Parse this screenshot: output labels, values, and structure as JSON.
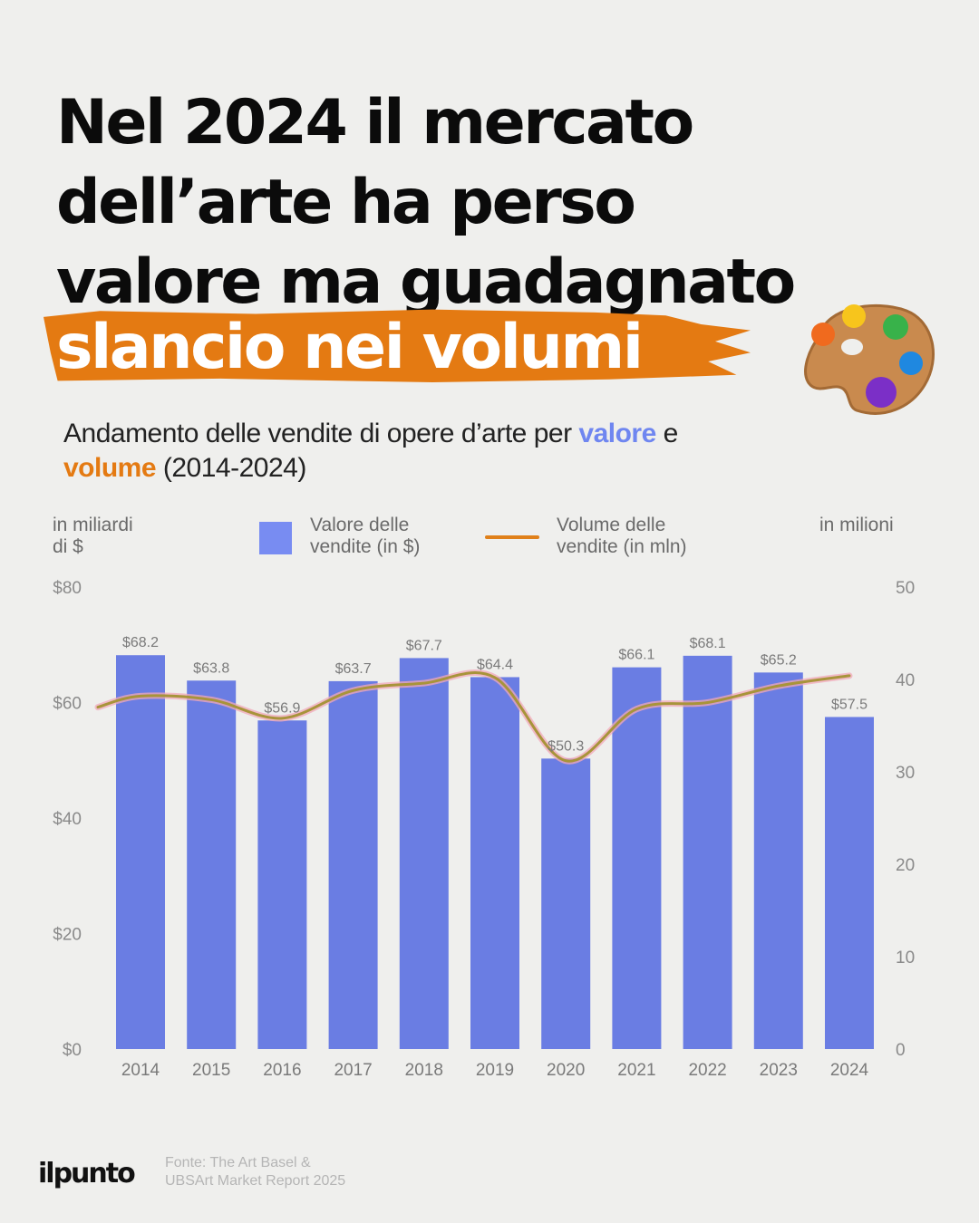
{
  "headline": {
    "lines": "Nel 2024 il mercato\ndell’arte ha perso\nvalore ma guadagnato",
    "highlight": "slancio nei volumi"
  },
  "subtitle": {
    "prefix": "Andamento delle vendite di opere d’arte per ",
    "keyword_value": "valore",
    "middle": " e ",
    "keyword_volume": "volume",
    "suffix": " (2014-2024)"
  },
  "axes": {
    "left_unit": "in miliardi\ndi $",
    "right_unit": "in milioni"
  },
  "legend": {
    "bars_label": "Valore delle\nvendite (in $)",
    "line_label": "Volume delle\nvendite (in mln)"
  },
  "footer": {
    "brand": "ilpunto",
    "source": "Fonte: The Art Basel &\nUBSArt Market Report 2025"
  },
  "icons": {
    "decoration": "paint-palette-icon"
  },
  "colors": {
    "bars": "#6a7de3",
    "line": "#a8943a",
    "line_glow": "#f2a8b8",
    "highlight": "#e47a12",
    "keyword_value": "#6f86f0",
    "keyword_volume": "#e47a12"
  },
  "chart_data": {
    "type": "bar",
    "categories": [
      "2014",
      "2015",
      "2016",
      "2017",
      "2018",
      "2019",
      "2020",
      "2021",
      "2022",
      "2023",
      "2024"
    ],
    "series": [
      {
        "name": "Valore delle vendite (in $)",
        "type": "bar",
        "axis": "left",
        "values": [
          68.2,
          63.8,
          56.9,
          63.7,
          67.7,
          64.4,
          50.3,
          66.1,
          68.1,
          65.2,
          57.5
        ],
        "labels": [
          "$68.2",
          "$63.8",
          "$56.9",
          "$63.7",
          "$67.7",
          "$64.4",
          "$50.3",
          "$66.1",
          "$68.1",
          "$65.2",
          "$57.5"
        ]
      },
      {
        "name": "Volume delle vendite (in mln)",
        "type": "line",
        "axis": "right",
        "values": [
          38.2,
          37.8,
          35.8,
          38.8,
          39.6,
          40.2,
          31.2,
          36.8,
          37.5,
          39.3,
          40.4
        ]
      }
    ],
    "y_left": {
      "lim": [
        0,
        80
      ],
      "ticks": [
        "$0",
        "$20",
        "$40",
        "$60",
        "$80"
      ]
    },
    "y_right": {
      "lim": [
        0,
        50
      ],
      "ticks": [
        "0",
        "10",
        "20",
        "30",
        "40",
        "50"
      ]
    },
    "grid": false,
    "legend": "top"
  }
}
